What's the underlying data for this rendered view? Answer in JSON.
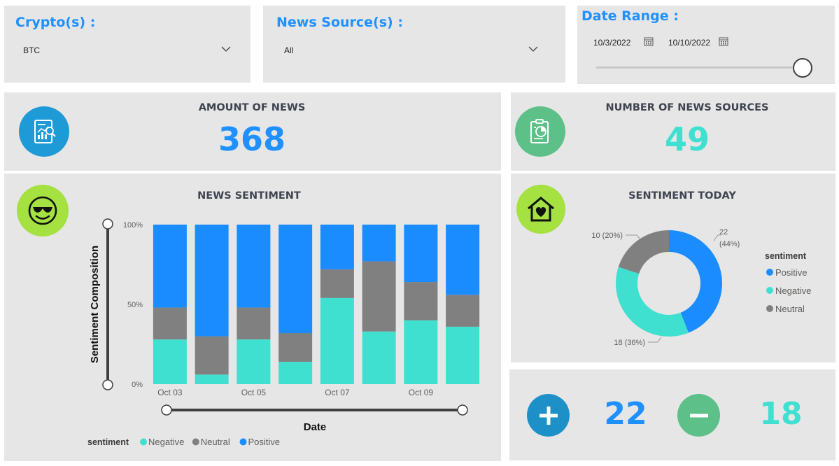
{
  "filters": {
    "crypto": {
      "title": "Crypto(s) :",
      "value": "BTC"
    },
    "news_source": {
      "title": "News Source(s) :",
      "value": "All"
    },
    "date_range": {
      "title": "Date Range :",
      "start": "10/3/2022",
      "end": "10/10/2022",
      "slider_position": 1.0
    }
  },
  "kpis": {
    "amount_of_news": {
      "title": "AMOUNT OF NEWS",
      "value": "368",
      "icon": "report-chart-icon",
      "color": "#1e90ff"
    },
    "news_sources": {
      "title": "NUMBER OF NEWS SOURCES",
      "value": "49",
      "icon": "clipboard-pie-icon",
      "color": "#40e0d0"
    }
  },
  "news_sentiment": {
    "title": "NEWS SENTIMENT",
    "icon": "sunglasses-face-icon"
  },
  "sentiment_today": {
    "title": "SENTIMENT TODAY",
    "icon": "home-heart-icon",
    "labels": {
      "positive": "22\n(44%)",
      "negative": "18 (36%)",
      "neutral": "10 (20%)"
    }
  },
  "counts": {
    "positive": {
      "value": "22",
      "icon": "plus-icon"
    },
    "negative": {
      "value": "18",
      "icon": "minus-icon"
    }
  },
  "colors": {
    "positive": "#1a8cff",
    "negative": "#40e0d0",
    "neutral": "#808080",
    "accent_blue": "#1e90ff",
    "accent_teal": "#40e0d0",
    "panel": "#e6e6e6"
  },
  "chart_data": [
    {
      "type": "bar",
      "stacked": "100%",
      "title": "",
      "xlabel": "Date",
      "ylabel": "Sentiment Composition",
      "categories": [
        "Oct 03",
        "Oct 04",
        "Oct 05",
        "Oct 06",
        "Oct 07",
        "Oct 08",
        "Oct 09",
        "Oct 10"
      ],
      "x_tick_labels": [
        "Oct 03",
        "",
        "Oct 05",
        "",
        "Oct 07",
        "",
        "Oct 09",
        ""
      ],
      "y_ticks": [
        "100%",
        "50%",
        "0%"
      ],
      "ylim": [
        0,
        100
      ],
      "series": [
        {
          "name": "Negative",
          "values": [
            28,
            6,
            28,
            14,
            54,
            33,
            40,
            36
          ]
        },
        {
          "name": "Neutral",
          "values": [
            20,
            24,
            20,
            18,
            18,
            44,
            24,
            20
          ]
        },
        {
          "name": "Positive",
          "values": [
            52,
            70,
            52,
            68,
            28,
            23,
            36,
            44
          ]
        }
      ],
      "legend": {
        "title": "sentiment",
        "position": "bottom-left",
        "items": [
          "Negative",
          "Neutral",
          "Positive"
        ]
      }
    },
    {
      "type": "pie",
      "donut": true,
      "title": "",
      "categories": [
        "Positive",
        "Negative",
        "Neutral"
      ],
      "values": [
        22,
        18,
        10
      ],
      "percentages": [
        44,
        36,
        20
      ],
      "legend": {
        "title": "sentiment",
        "position": "right",
        "items": [
          "Positive",
          "Negative",
          "Neutral"
        ]
      }
    }
  ]
}
